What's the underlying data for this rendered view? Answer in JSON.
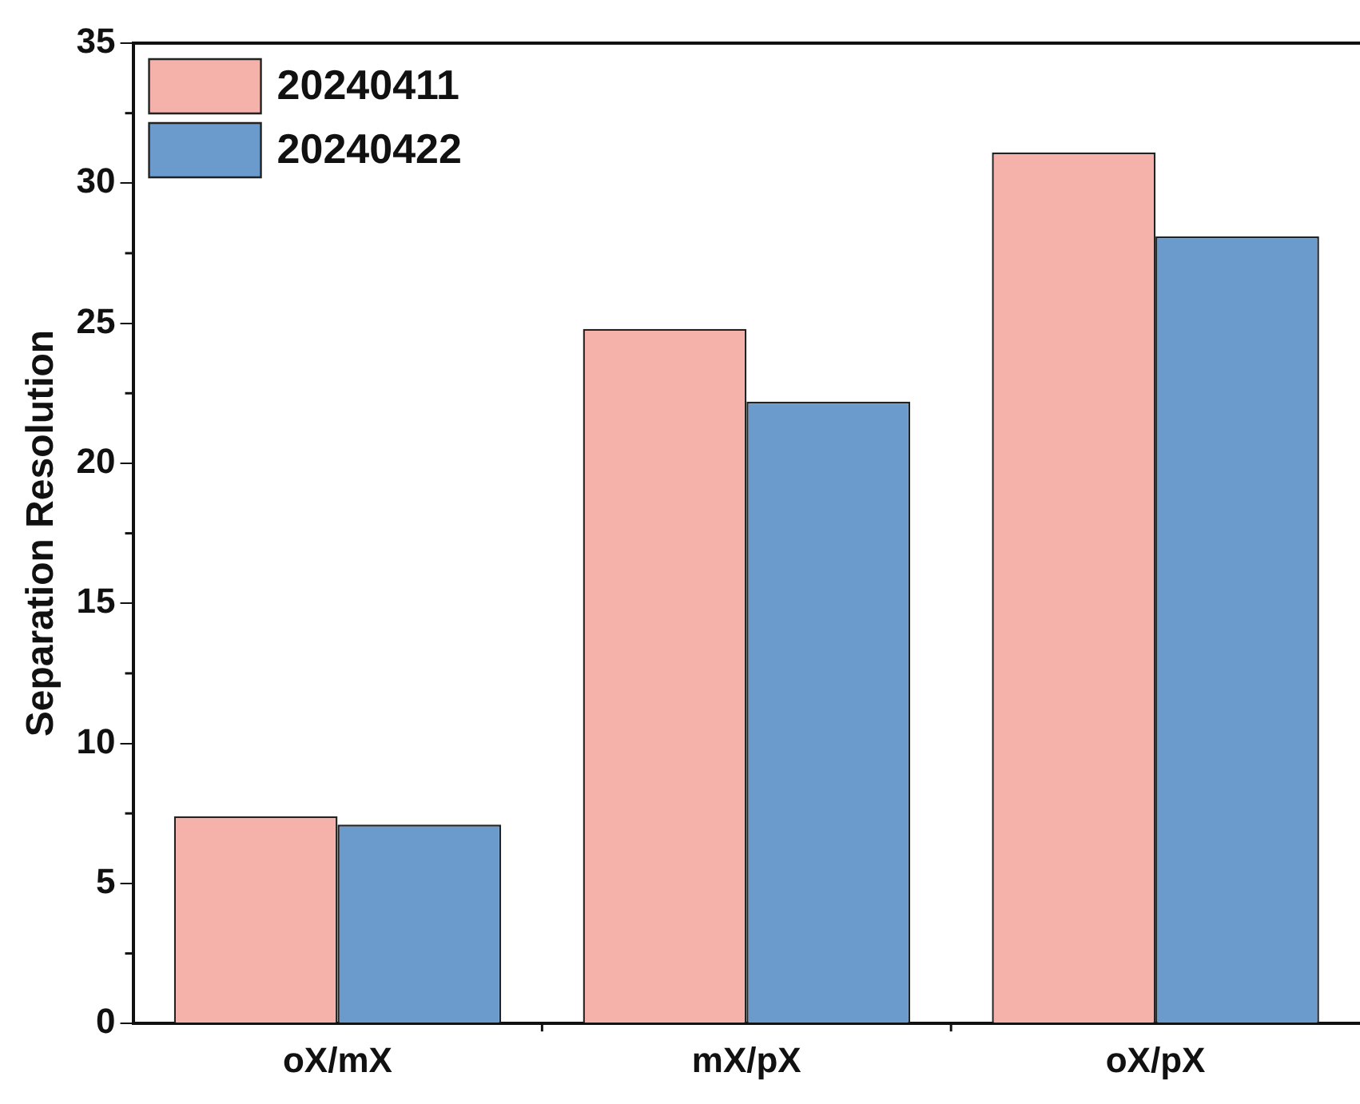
{
  "chart_data": {
    "type": "bar",
    "ylabel": "Separation Resolution",
    "categories": [
      "oX/mX",
      "mX/pX",
      "oX/pX"
    ],
    "series": [
      {
        "name": "20240411",
        "color": "#f5b2ab",
        "values": [
          7.4,
          24.8,
          31.1
        ]
      },
      {
        "name": "20240422",
        "color": "#6a9bcc",
        "values": [
          7.1,
          22.2,
          28.1
        ]
      }
    ],
    "ylim": [
      0,
      35
    ],
    "yticks": [
      0,
      5,
      10,
      15,
      20,
      25,
      30,
      35
    ],
    "grid": false,
    "legend": "top left"
  }
}
